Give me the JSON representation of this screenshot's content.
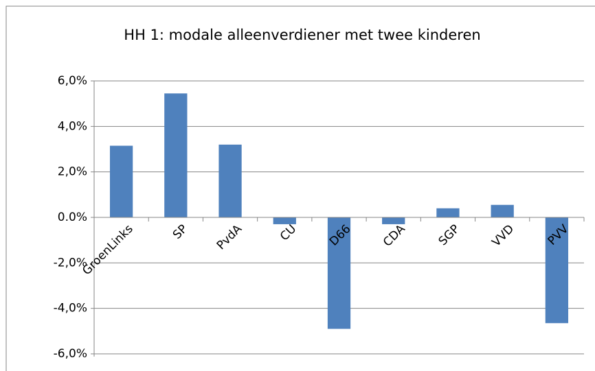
{
  "chart_data": {
    "type": "bar",
    "title": "HH 1:  modale alleenverdiener met twee kinderen",
    "categories": [
      "GroenLinks",
      "SP",
      "PvdA",
      "CU",
      "D66",
      "CDA",
      "SGP",
      "VVD",
      "PVV"
    ],
    "values": [
      3.15,
      5.45,
      3.2,
      -0.3,
      -4.9,
      -0.3,
      0.4,
      0.55,
      -4.65
    ],
    "color": "#4f81bd",
    "ylim": [
      -6,
      6
    ],
    "yticks": [
      {
        "value": -6,
        "label": "-6,0%"
      },
      {
        "value": -4,
        "label": "-4,0%"
      },
      {
        "value": -2,
        "label": "-2,0%"
      },
      {
        "value": 0,
        "label": "0.0%"
      },
      {
        "value": 2,
        "label": "2,0%"
      },
      {
        "value": 4,
        "label": "4,0%"
      },
      {
        "value": 6,
        "label": "6,0%"
      }
    ],
    "grid": true
  }
}
